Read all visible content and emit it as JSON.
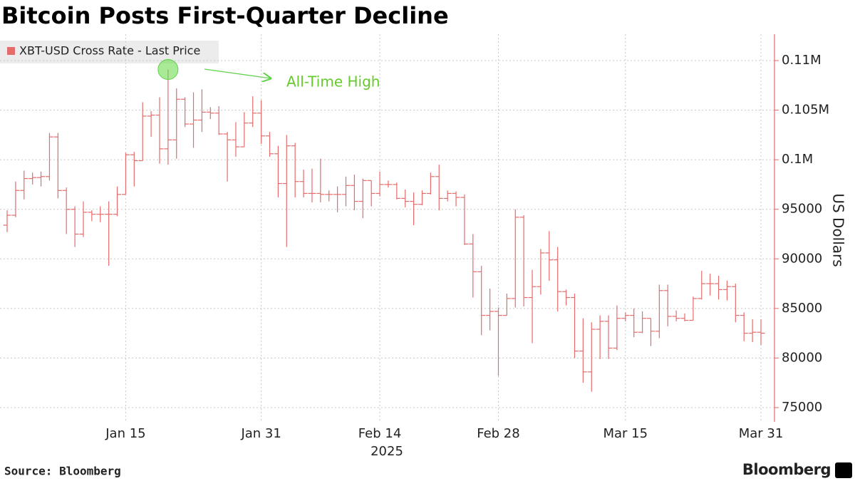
{
  "chart_data": {
    "type": "ohlc",
    "title": "Bitcoin Posts First-Quarter Decline",
    "source": "Source: Bloomberg",
    "brand": "Bloomberg",
    "ylabel": "US Dollars",
    "xlabel": "2025",
    "annotation": "All-Time High",
    "annotation_index": 19,
    "x": [
      "2025-01-01",
      "2025-01-02",
      "2025-01-03",
      "2025-01-04",
      "2025-01-05",
      "2025-01-06",
      "2025-01-07",
      "2025-01-08",
      "2025-01-09",
      "2025-01-10",
      "2025-01-11",
      "2025-01-12",
      "2025-01-13",
      "2025-01-14",
      "2025-01-15",
      "2025-01-16",
      "2025-01-17",
      "2025-01-18",
      "2025-01-19",
      "2025-01-20",
      "2025-01-21",
      "2025-01-22",
      "2025-01-23",
      "2025-01-24",
      "2025-01-25",
      "2025-01-26",
      "2025-01-27",
      "2025-01-28",
      "2025-01-29",
      "2025-01-30",
      "2025-01-31",
      "2025-02-01",
      "2025-02-02",
      "2025-02-03",
      "2025-02-04",
      "2025-02-05",
      "2025-02-06",
      "2025-02-07",
      "2025-02-08",
      "2025-02-09",
      "2025-02-10",
      "2025-02-11",
      "2025-02-12",
      "2025-02-13",
      "2025-02-14",
      "2025-02-15",
      "2025-02-16",
      "2025-02-17",
      "2025-02-18",
      "2025-02-19",
      "2025-02-20",
      "2025-02-21",
      "2025-02-22",
      "2025-02-23",
      "2025-02-24",
      "2025-02-25",
      "2025-02-26",
      "2025-02-27",
      "2025-02-28",
      "2025-03-01",
      "2025-03-02",
      "2025-03-03",
      "2025-03-04",
      "2025-03-05",
      "2025-03-06",
      "2025-03-07",
      "2025-03-08",
      "2025-03-09",
      "2025-03-10",
      "2025-03-11",
      "2025-03-12",
      "2025-03-13",
      "2025-03-14",
      "2025-03-15",
      "2025-03-16",
      "2025-03-17",
      "2025-03-18",
      "2025-03-19",
      "2025-03-20",
      "2025-03-21",
      "2025-03-22",
      "2025-03-23",
      "2025-03-24",
      "2025-03-25",
      "2025-03-26",
      "2025-03-27",
      "2025-03-28",
      "2025-03-29",
      "2025-03-30",
      "2025-03-31"
    ],
    "series": [
      {
        "name": "XBT-USD Cross Rate - Last Price",
        "color": "#e46c6c",
        "open": [
          93400,
          94400,
          96900,
          98100,
          98200,
          98300,
          102300,
          96900,
          95000,
          92500,
          94700,
          94500,
          94500,
          94500,
          96500,
          100500,
          99900,
          104400,
          104500,
          101100,
          102000,
          106100,
          103600,
          104000,
          104800,
          104700,
          102600,
          102000,
          101300,
          103700,
          104700,
          102400,
          100600,
          97600,
          101400,
          97800,
          96600,
          96600,
          96500,
          96500,
          96500,
          97400,
          95800,
          97900,
          96600,
          97500,
          97500,
          96100,
          95800,
          95500,
          96600,
          98300,
          96100,
          96600,
          96200,
          91500,
          88700,
          84300,
          84700,
          84300,
          86000,
          94200,
          86100,
          87200,
          90600,
          89900,
          86700,
          86100,
          80700,
          78600,
          82900,
          83700,
          81000,
          84000,
          84300,
          82600,
          84000,
          82700,
          86800,
          84200,
          84000,
          83800,
          86000,
          87500,
          87500,
          86900,
          87200,
          84300,
          82500,
          82600
        ],
        "high": [
          94900,
          97800,
          98900,
          98700,
          98800,
          102700,
          102700,
          97200,
          95300,
          95800,
          94900,
          95300,
          95800,
          97300,
          100700,
          100800,
          105800,
          104900,
          106300,
          109100,
          107200,
          106300,
          106800,
          107100,
          105300,
          105400,
          102800,
          103800,
          104800,
          106400,
          106000,
          102800,
          101400,
          102500,
          101700,
          99000,
          99100,
          100100,
          96900,
          97300,
          98300,
          98500,
          98100,
          97900,
          98800,
          97900,
          97700,
          97000,
          96700,
          96900,
          98700,
          99500,
          96900,
          96800,
          96500,
          92500,
          89300,
          87000,
          85100,
          86500,
          95000,
          94400,
          88900,
          91000,
          92800,
          91200,
          86900,
          86500,
          84000,
          83600,
          84300,
          84300,
          85300,
          84600,
          85000,
          84700,
          84000,
          87400,
          87400,
          84800,
          84500,
          86200,
          88800,
          88500,
          88300,
          87800,
          87500,
          84600,
          83900,
          83900
        ],
        "low": [
          92700,
          94200,
          96000,
          97500,
          97300,
          97900,
          96100,
          92500,
          91200,
          92200,
          93800,
          93700,
          89300,
          94300,
          96500,
          97300,
          99900,
          102300,
          99600,
          99500,
          100100,
          103300,
          101200,
          102800,
          104100,
          102500,
          97800,
          100300,
          101300,
          103300,
          101600,
          100300,
          96200,
          91200,
          96200,
          96200,
          95700,
          95700,
          95800,
          94700,
          95300,
          94900,
          94100,
          95300,
          96300,
          97200,
          96000,
          95200,
          93400,
          95400,
          96500,
          94900,
          95800,
          95300,
          91400,
          86100,
          82300,
          82800,
          78200,
          84300,
          85100,
          85200,
          81500,
          86400,
          87800,
          84700,
          85300,
          80000,
          77500,
          76600,
          79900,
          79900,
          80800,
          83700,
          82100,
          82500,
          81200,
          82000,
          83200,
          83700,
          83700,
          83800,
          85900,
          86300,
          85900,
          85800,
          83600,
          81700,
          81600,
          81300
        ],
        "close": [
          94400,
          96900,
          98100,
          98200,
          98300,
          102300,
          96900,
          95000,
          92500,
          94700,
          94500,
          94500,
          94500,
          96500,
          100500,
          99900,
          104400,
          104500,
          101100,
          102000,
          106100,
          103600,
          104000,
          104800,
          104700,
          102600,
          102000,
          101300,
          103700,
          104700,
          102400,
          100600,
          97600,
          101400,
          97800,
          96600,
          96600,
          96500,
          96500,
          96500,
          97400,
          95800,
          97900,
          96600,
          97500,
          97500,
          96100,
          95800,
          95500,
          96600,
          98300,
          96100,
          96600,
          96200,
          91500,
          88700,
          84300,
          84700,
          84300,
          86000,
          94200,
          86100,
          87200,
          90600,
          89900,
          86700,
          86100,
          80700,
          78600,
          82900,
          83700,
          81000,
          84000,
          84300,
          82600,
          84000,
          82700,
          86800,
          84200,
          84000,
          83800,
          86000,
          87500,
          87500,
          86900,
          87200,
          84300,
          82500,
          82600,
          82500
        ]
      }
    ],
    "xlim": [
      "2025-01-01",
      "2025-03-31"
    ],
    "xticks": [
      {
        "value": "2025-01-15",
        "label": "Jan 15"
      },
      {
        "value": "2025-01-31",
        "label": "Jan 31"
      },
      {
        "value": "2025-02-14",
        "label": "Feb 14"
      },
      {
        "value": "2025-02-28",
        "label": "Feb 28"
      },
      {
        "value": "2025-03-15",
        "label": "Mar 15"
      },
      {
        "value": "2025-03-31",
        "label": "Mar 31"
      }
    ],
    "ylim": [
      73560,
      112660
    ],
    "yticks": [
      75000,
      80000,
      85000,
      90000,
      95000,
      {
        "value": 100000,
        "label": "0.1M"
      },
      {
        "value": 105000,
        "label": "0.105M"
      },
      {
        "value": 110000,
        "label": "0.11M"
      }
    ],
    "grid": true
  }
}
